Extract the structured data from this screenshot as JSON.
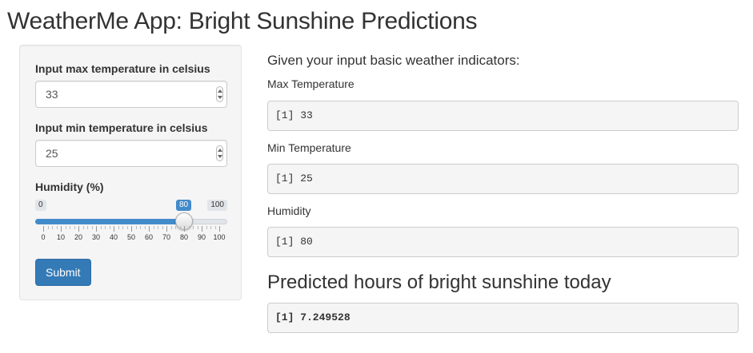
{
  "app": {
    "title": "WeatherMe App: Bright Sunshine Predictions"
  },
  "sidebar": {
    "max_temp": {
      "label": "Input max temperature in celsius",
      "value": "33"
    },
    "min_temp": {
      "label": "Input min temperature in celsius",
      "value": "25"
    },
    "humidity": {
      "label": "Humidity (%)",
      "min": "0",
      "max": "100",
      "value": "80",
      "ticks": [
        "0",
        "10",
        "20",
        "30",
        "40",
        "50",
        "60",
        "70",
        "80",
        "90",
        "100"
      ]
    },
    "submit_label": "Submit"
  },
  "main": {
    "heading": "Given your input basic weather indicators:",
    "max_temp_label": "Max Temperature",
    "max_temp_output": "[1] 33",
    "min_temp_label": "Min Temperature",
    "min_temp_output": "[1] 25",
    "humidity_label": "Humidity",
    "humidity_output": "[1] 80",
    "prediction_heading": "Predicted hours of bright sunshine today",
    "prediction_output": "[1] 7.249528"
  },
  "colors": {
    "accent": "#428bca",
    "button": "#337ab7"
  }
}
